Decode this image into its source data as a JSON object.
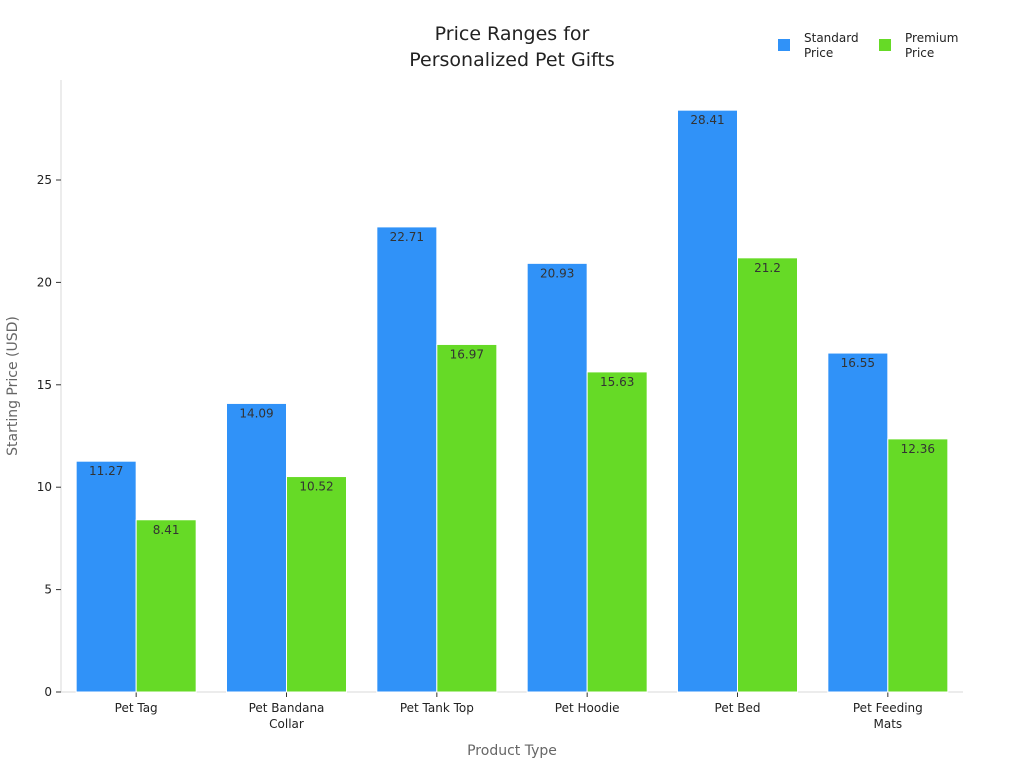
{
  "chart_data": {
    "type": "bar",
    "title_lines": [
      "Price Ranges for",
      "Personalized Pet Gifts"
    ],
    "xlabel": "Product Type",
    "ylabel": "Starting Price (USD)",
    "ylim": [
      0,
      30
    ],
    "yticks": [
      0,
      5,
      10,
      15,
      20,
      25
    ],
    "grid": false,
    "legend_position": "top-right",
    "categories": [
      [
        "Pet Tag"
      ],
      [
        "Pet Bandana",
        "Collar"
      ],
      [
        "Pet Tank Top"
      ],
      [
        "Pet Hoodie"
      ],
      [
        "Pet Bed"
      ],
      [
        "Pet Feeding",
        "Mats"
      ]
    ],
    "series": [
      {
        "name_lines": [
          "Standard",
          "Price"
        ],
        "color": "#3092F8",
        "values": [
          11.27,
          14.09,
          22.71,
          20.93,
          28.41,
          16.55
        ],
        "labels": [
          "11.27",
          "14.09",
          "22.71",
          "20.93",
          "28.41",
          "16.55"
        ]
      },
      {
        "name_lines": [
          "Premium",
          "Price"
        ],
        "color": "#66DA26",
        "values": [
          8.41,
          10.52,
          16.97,
          15.63,
          21.2,
          12.36
        ],
        "labels": [
          "8.41",
          "10.52",
          "16.97",
          "15.63",
          "21.2",
          "12.36"
        ]
      }
    ]
  }
}
